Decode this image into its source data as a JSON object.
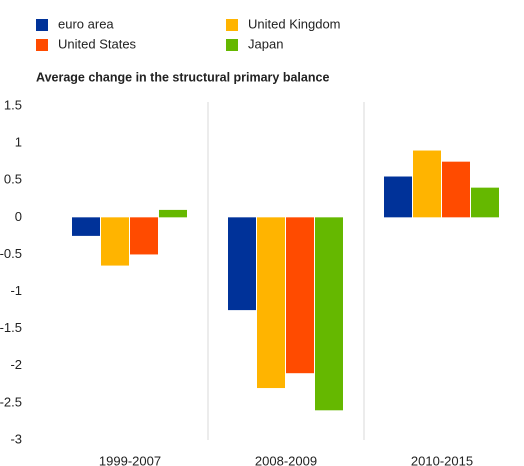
{
  "chart_data": {
    "type": "bar",
    "title": "Average change in the structural primary balance",
    "categories": [
      "1999-2007",
      "2008-2009",
      "2010-2015"
    ],
    "series": [
      {
        "name": "euro area",
        "color": "#003299",
        "values": [
          -0.25,
          -1.25,
          0.55
        ]
      },
      {
        "name": "United Kingdom",
        "color": "#ffb400",
        "values": [
          -0.65,
          -2.3,
          0.9
        ]
      },
      {
        "name": "United States",
        "color": "#ff4b00",
        "values": [
          -0.5,
          -2.1,
          0.75
        ]
      },
      {
        "name": "Japan",
        "color": "#65b800",
        "values": [
          0.1,
          -2.6,
          0.4
        ]
      }
    ],
    "ylim": [
      -3,
      1.5
    ],
    "yticks": [
      -3,
      -2.5,
      -2,
      -1.5,
      -1,
      -0.5,
      0,
      0.5,
      1,
      1.5
    ],
    "grid": false
  }
}
